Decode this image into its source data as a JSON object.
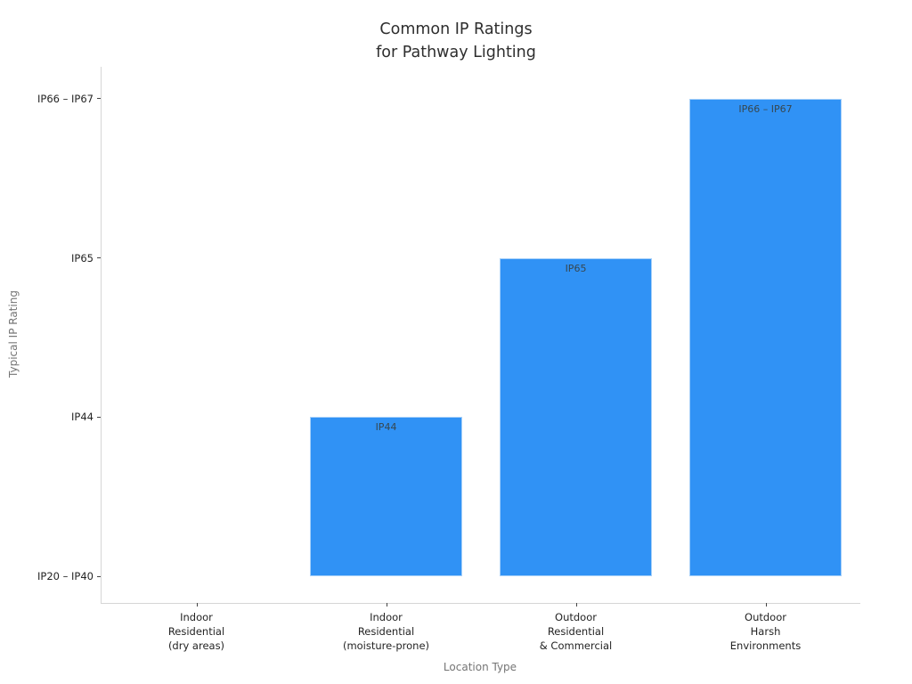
{
  "chart_data": {
    "type": "bar",
    "title": "Common IP Ratings\nfor Pathway Lighting",
    "xlabel": "Location Type",
    "ylabel": "Typical IP Rating",
    "categories": [
      "Indoor\nResidential\n(dry areas)",
      "Indoor\nResidential\n(moisture-prone)",
      "Outdoor\nResidential\n& Commercial",
      "Outdoor\nHarsh\nEnvironments"
    ],
    "values": [
      0,
      1,
      2,
      3
    ],
    "bar_labels": [
      "",
      "IP44",
      "IP65",
      "IP66 – IP67"
    ],
    "ytick_labels": [
      "IP20 – IP40",
      "IP44",
      "IP65",
      "IP66 – IP67"
    ],
    "bar_color": "#3092F5",
    "bar_edge_color": "#a6d0f9",
    "grid": false,
    "legend": null
  }
}
